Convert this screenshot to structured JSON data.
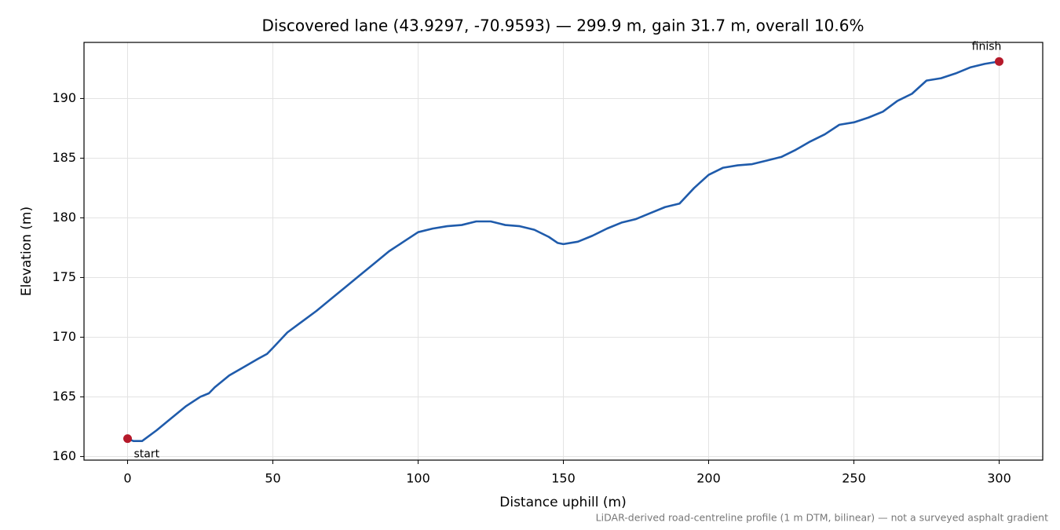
{
  "chart_data": {
    "type": "line",
    "title": "Discovered lane (43.9297, -70.9593) — 299.9 m, gain 31.7 m, overall 10.6%",
    "x_label": "Distance uphill (m)",
    "y_label": "Elevation (m)",
    "note": "LiDAR-derived road-centreline profile (1 m DTM, bilinear) — not a surveyed asphalt gradient",
    "x": [
      0,
      2,
      5,
      10,
      15,
      20,
      25,
      28,
      30,
      35,
      40,
      45,
      48,
      50,
      55,
      60,
      65,
      70,
      75,
      80,
      85,
      90,
      95,
      100,
      105,
      110,
      115,
      120,
      125,
      130,
      135,
      140,
      145,
      148,
      150,
      155,
      160,
      165,
      170,
      175,
      180,
      185,
      190,
      195,
      200,
      205,
      210,
      215,
      220,
      225,
      230,
      235,
      240,
      245,
      250,
      255,
      260,
      265,
      270,
      275,
      280,
      285,
      290,
      295,
      300
    ],
    "series": [
      {
        "color": "#1f5bab",
        "values": [
          161.5,
          161.3,
          161.3,
          162.2,
          163.2,
          164.2,
          165.0,
          165.3,
          165.8,
          166.8,
          167.5,
          168.2,
          168.6,
          169.1,
          170.4,
          171.3,
          172.2,
          173.2,
          174.2,
          175.2,
          176.2,
          177.2,
          178.0,
          178.8,
          179.1,
          179.3,
          179.4,
          179.7,
          179.7,
          179.4,
          179.3,
          179.0,
          178.4,
          177.9,
          177.8,
          178.0,
          178.5,
          179.1,
          179.6,
          179.9,
          180.4,
          180.9,
          181.2,
          182.5,
          183.6,
          184.2,
          184.4,
          184.5,
          184.8,
          185.1,
          185.7,
          186.4,
          187.0,
          187.8,
          188.0,
          188.4,
          188.9,
          189.8,
          190.4,
          191.5,
          191.7,
          192.1,
          192.6,
          192.9,
          193.1
        ]
      }
    ],
    "annotations": [
      {
        "label": "start",
        "x": 0,
        "y": 161.5,
        "color": "#b5192a"
      },
      {
        "label": "finish",
        "x": 300,
        "y": 193.1,
        "color": "#b5192a"
      }
    ],
    "xlim": [
      -15,
      315
    ],
    "ylim": [
      159.7,
      194.7
    ],
    "xticks": [
      0,
      50,
      100,
      150,
      200,
      250,
      300
    ],
    "yticks": [
      160,
      165,
      170,
      175,
      180,
      185,
      190
    ],
    "grid": true
  }
}
